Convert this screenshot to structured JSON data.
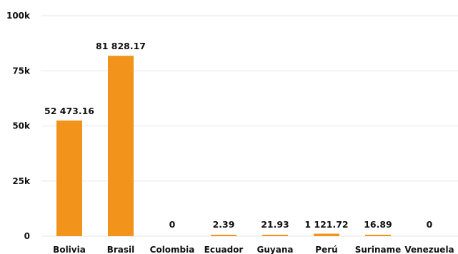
{
  "chart_data": {
    "type": "bar",
    "categories": [
      "Bolivia",
      "Brasil",
      "Colombia",
      "Ecuador",
      "Guyana",
      "Perú",
      "Suriname",
      "Venezuela"
    ],
    "values": [
      52473.16,
      81828.17,
      0,
      2.39,
      21.93,
      1121.72,
      16.89,
      0
    ],
    "value_labels": [
      "52 473.16",
      "81 828.17",
      "0",
      "2.39",
      "21.93",
      "1 121.72",
      "16.89",
      "0"
    ],
    "ylim": [
      0,
      100000
    ],
    "yticks": [
      {
        "value": 0,
        "label": "0"
      },
      {
        "value": 25000,
        "label": "25k"
      },
      {
        "value": 50000,
        "label": "50k"
      },
      {
        "value": 75000,
        "label": "75k"
      },
      {
        "value": 100000,
        "label": "100k"
      }
    ],
    "grid": true,
    "bar_color": "#f2931b",
    "grid_color": "#e6e6e6",
    "title": "",
    "xlabel": "",
    "ylabel": ""
  }
}
